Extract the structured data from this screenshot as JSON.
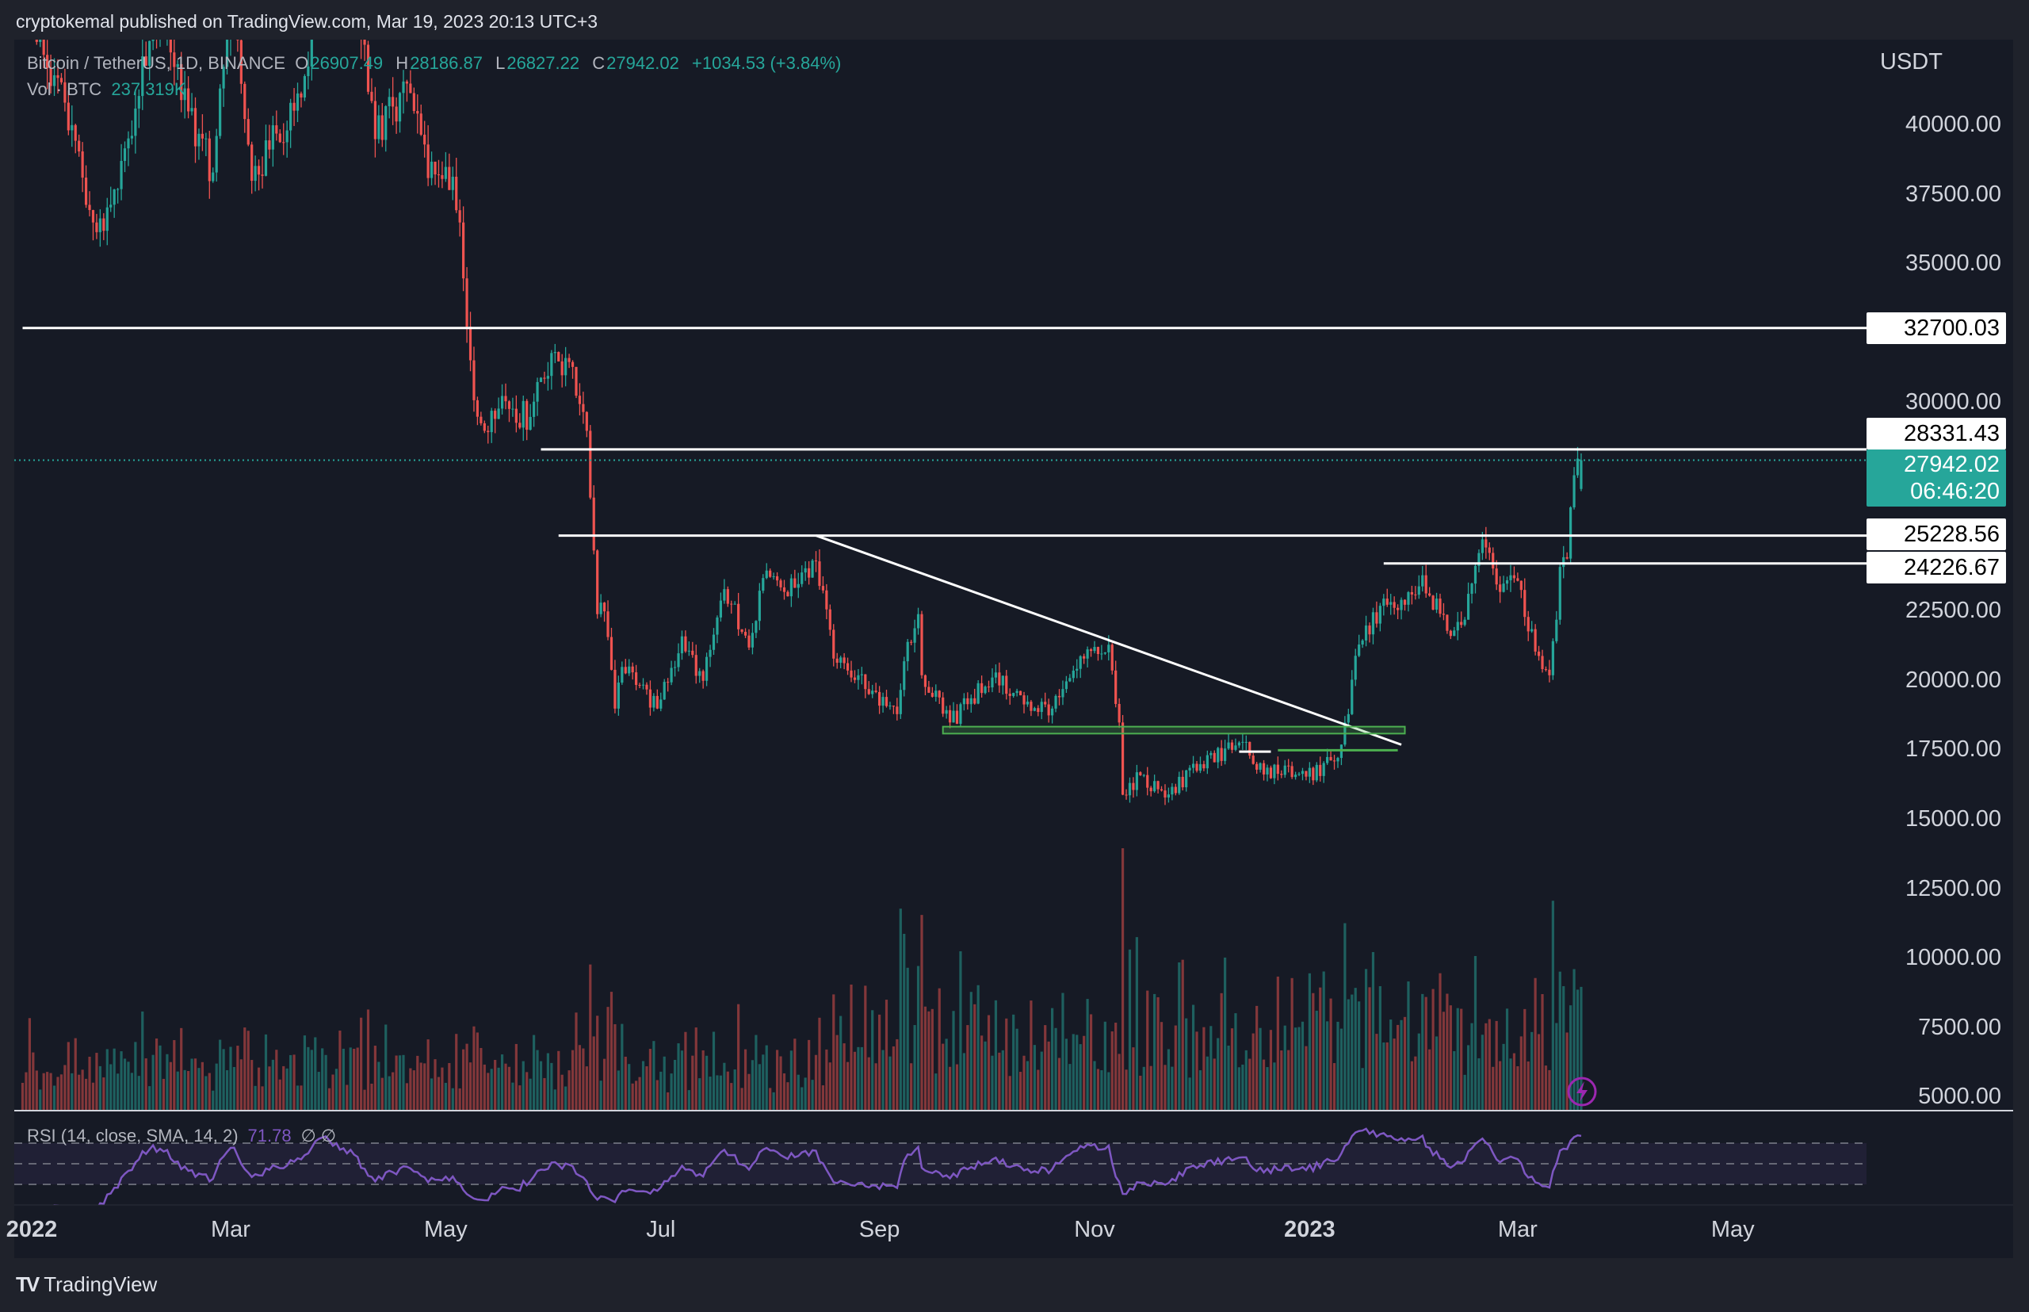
{
  "header": {
    "publisher": "cryptokemal published on TradingView.com, Mar 19, 2023 20:13 UTC+3"
  },
  "legend": {
    "symbol": "Bitcoin / TetherUS, 1D, BINANCE",
    "open_k": "O",
    "open": "26907.49",
    "high_k": "H",
    "high": "28186.87",
    "low_k": "L",
    "low": "26827.22",
    "close_k": "C",
    "close": "27942.02",
    "change": "+1034.53 (+3.84%)",
    "volume_label": "Vol · BTC",
    "volume_value": "237.319K"
  },
  "rsi": {
    "label": "RSI (14, close, SMA, 14, 2)",
    "value": "71.78",
    "extra": "∅  ∅",
    "line_color": "#7e57c2",
    "upper": 70,
    "middle": 50,
    "lower": 30
  },
  "axis": {
    "currency": "USDT",
    "price_labels": [
      "40000.00",
      "37500.00",
      "35000.00",
      "30000.00",
      "22500.00",
      "20000.00",
      "17500.00",
      "15000.00",
      "12500.00",
      "10000.00",
      "7500.00",
      "5000.00"
    ],
    "time_labels": [
      {
        "text": "2022",
        "date": "2022-01-01",
        "bold": true
      },
      {
        "text": "Mar",
        "date": "2022-03-01"
      },
      {
        "text": "May",
        "date": "2022-05-01"
      },
      {
        "text": "Jul",
        "date": "2022-07-01"
      },
      {
        "text": "Sep",
        "date": "2022-09-01"
      },
      {
        "text": "Nov",
        "date": "2022-11-01"
      },
      {
        "text": "2023",
        "date": "2023-01-01",
        "bold": true
      },
      {
        "text": "Mar",
        "date": "2023-03-01"
      },
      {
        "text": "May",
        "date": "2023-05-01"
      }
    ]
  },
  "price_tags": {
    "level1": "32700.03",
    "level2": "28331.43",
    "current_price": "27942.02",
    "countdown": "06:46:20",
    "level3": "25228.56",
    "level4": "24226.67"
  },
  "footer": {
    "brand": "TradingView",
    "logo": "TV"
  },
  "colors": {
    "up": "#26a69a",
    "down": "#ef5350",
    "background": "#161a25",
    "drawing": "#ffffff",
    "zone": "#4caf50"
  },
  "chart_data": {
    "type": "candlestick",
    "symbol": "BTCUSDT",
    "interval": "1D",
    "ylim": [
      4400,
      43000
    ],
    "last_candle": {
      "date": "2023-03-19",
      "open": 26907.49,
      "high": 28186.87,
      "low": 26827.22,
      "close": 27942.02
    },
    "approx_closes": [
      [
        "2022-01-01",
        47000
      ],
      [
        "2022-01-05",
        43000
      ],
      [
        "2022-01-10",
        41800
      ],
      [
        "2022-01-21",
        36500
      ],
      [
        "2022-01-24",
        36200
      ],
      [
        "2022-01-28",
        37700
      ],
      [
        "2022-02-07",
        44000
      ],
      [
        "2022-02-10",
        43500
      ],
      [
        "2022-02-14",
        42200
      ],
      [
        "2022-02-17",
        40500
      ],
      [
        "2022-02-24",
        38300
      ],
      [
        "2022-02-28",
        43200
      ],
      [
        "2022-03-02",
        44400
      ],
      [
        "2022-03-07",
        38000
      ],
      [
        "2022-03-14",
        39700
      ],
      [
        "2022-03-21",
        41000
      ],
      [
        "2022-03-28",
        47100
      ],
      [
        "2022-04-05",
        45500
      ],
      [
        "2022-04-11",
        39500
      ],
      [
        "2022-04-20",
        41500
      ],
      [
        "2022-04-26",
        38100
      ],
      [
        "2022-05-01",
        38500
      ],
      [
        "2022-05-05",
        36500
      ],
      [
        "2022-05-09",
        30100
      ],
      [
        "2022-05-12",
        29000
      ],
      [
        "2022-05-16",
        29800
      ],
      [
        "2022-05-25",
        29500
      ],
      [
        "2022-05-31",
        31800
      ],
      [
        "2022-06-06",
        31300
      ],
      [
        "2022-06-10",
        29000
      ],
      [
        "2022-06-13",
        22400
      ],
      [
        "2022-06-15",
        22500
      ],
      [
        "2022-06-18",
        19000
      ],
      [
        "2022-06-20",
        20500
      ],
      [
        "2022-06-30",
        19000
      ],
      [
        "2022-07-07",
        21600
      ],
      [
        "2022-07-13",
        20000
      ],
      [
        "2022-07-19",
        23300
      ],
      [
        "2022-07-26",
        21200
      ],
      [
        "2022-07-30",
        23700
      ],
      [
        "2022-08-05",
        23200
      ],
      [
        "2022-08-10",
        23900
      ],
      [
        "2022-08-14",
        24300
      ],
      [
        "2022-08-19",
        20800
      ],
      [
        "2022-08-26",
        20200
      ],
      [
        "2022-09-06",
        18800
      ],
      [
        "2022-09-09",
        21400
      ],
      [
        "2022-09-12",
        22400
      ],
      [
        "2022-09-13",
        20200
      ],
      [
        "2022-09-18",
        19400
      ],
      [
        "2022-09-21",
        18500
      ],
      [
        "2022-10-04",
        20300
      ],
      [
        "2022-10-12",
        19150
      ],
      [
        "2022-10-20",
        19000
      ],
      [
        "2022-10-25",
        20100
      ],
      [
        "2022-10-29",
        20800
      ],
      [
        "2022-11-05",
        21300
      ],
      [
        "2022-11-08",
        18500
      ],
      [
        "2022-11-09",
        15900
      ],
      [
        "2022-11-14",
        16600
      ],
      [
        "2022-11-21",
        15800
      ],
      [
        "2022-12-01",
        17000
      ],
      [
        "2022-12-13",
        17800
      ],
      [
        "2022-12-14",
        17800
      ],
      [
        "2022-12-17",
        16800
      ],
      [
        "2022-12-31",
        16550
      ],
      [
        "2023-01-08",
        17100
      ],
      [
        "2023-01-12",
        18800
      ],
      [
        "2023-01-14",
        20900
      ],
      [
        "2023-01-21",
        22700
      ],
      [
        "2023-01-31",
        23100
      ],
      [
        "2023-02-02",
        23800
      ],
      [
        "2023-02-09",
        21800
      ],
      [
        "2023-02-14",
        22200
      ],
      [
        "2023-02-16",
        23500
      ],
      [
        "2023-02-18",
        24600
      ],
      [
        "2023-02-20",
        24800
      ],
      [
        "2023-02-24",
        23200
      ],
      [
        "2023-03-01",
        23600
      ],
      [
        "2023-03-03",
        22300
      ],
      [
        "2023-03-09",
        20400
      ],
      [
        "2023-03-10",
        20200
      ],
      [
        "2023-03-12",
        22200
      ],
      [
        "2023-03-13",
        24100
      ],
      [
        "2023-03-15",
        24400
      ],
      [
        "2023-03-17",
        27400
      ],
      [
        "2023-03-19",
        27942.02
      ]
    ],
    "horizontal_levels": [
      {
        "price": 32700.03,
        "from": "2022-01-01"
      },
      {
        "price": 28331.43,
        "from": "2022-05-28"
      },
      {
        "price": 25228.56,
        "from": "2022-06-02"
      },
      {
        "price": 24226.67,
        "from": "2023-01-22"
      }
    ],
    "trendline": {
      "from": [
        "2022-08-14",
        25228.56
      ],
      "to": [
        "2023-01-27",
        17700
      ]
    },
    "support_zone": {
      "from": "2022-09-19",
      "to": "2023-01-28",
      "top": 18350,
      "bottom": 18100
    },
    "short_lines": [
      {
        "from": "2022-12-23",
        "to": "2023-01-26",
        "price": 17500,
        "color": "#4caf50"
      },
      {
        "from": "2022-12-12",
        "to": "2022-12-21",
        "price": 17450,
        "color": "#ffffff"
      }
    ]
  }
}
